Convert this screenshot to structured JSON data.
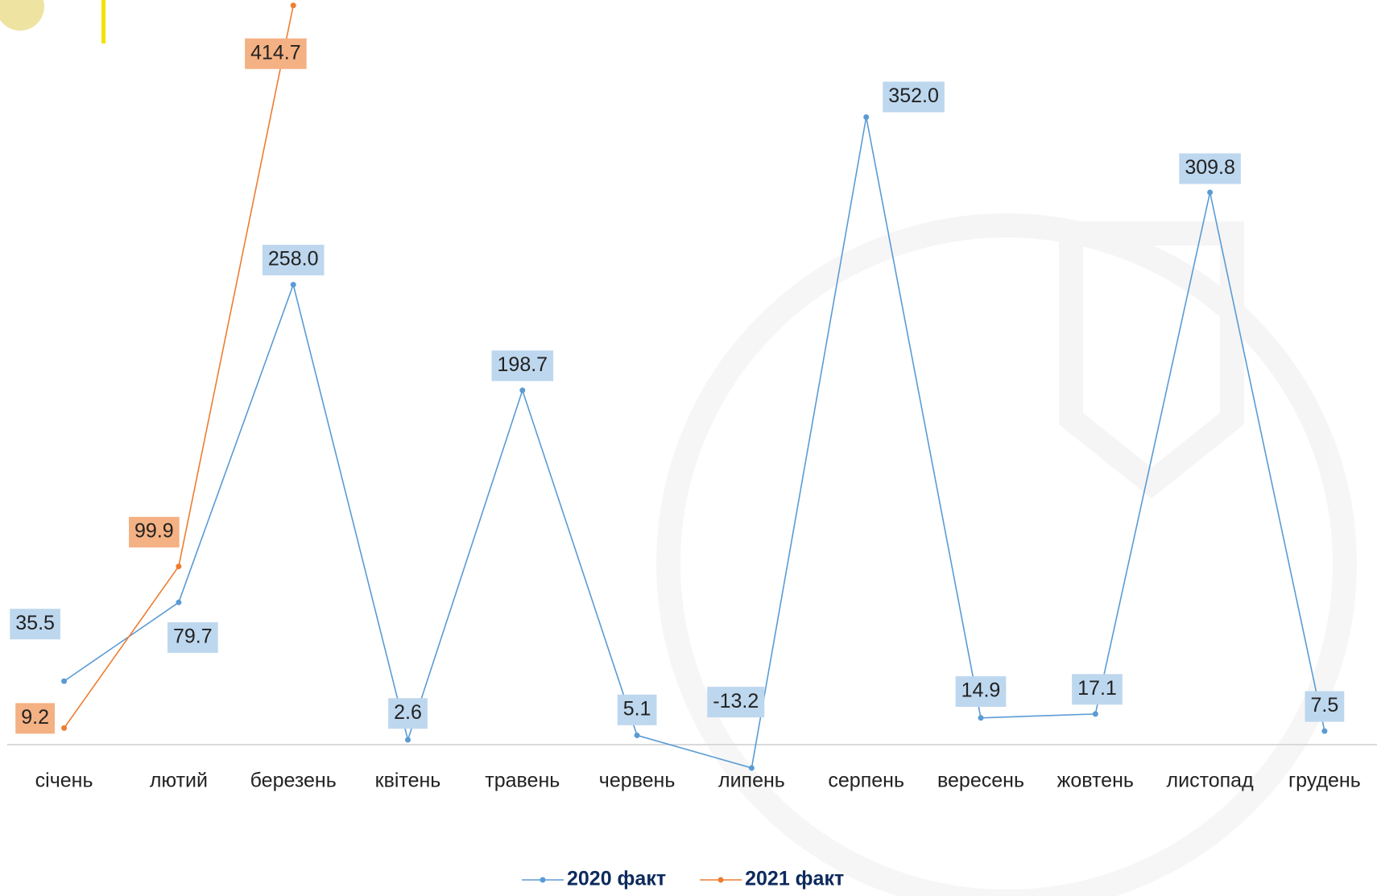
{
  "chart_data": {
    "type": "line",
    "categories": [
      "січень",
      "лютий",
      "березень",
      "квітень",
      "травень",
      "червень",
      "липень",
      "серпень",
      "вересень",
      "жовтень",
      "листопад",
      "грудень"
    ],
    "series": [
      {
        "name": "2020 факт",
        "color": "#5b9bd5",
        "label_color": "#bdd7ee",
        "values": [
          35.5,
          79.7,
          258.0,
          2.6,
          198.7,
          5.1,
          -13.2,
          352.0,
          14.9,
          17.1,
          309.8,
          7.5
        ],
        "value_labels": [
          "35.5",
          "79.7",
          "258.0",
          "2.6",
          "198.7",
          "5.1",
          "-13.2",
          "352.0",
          "14.9",
          "17.1",
          "309.8",
          "7.5"
        ]
      },
      {
        "name": "2021 факт",
        "color": "#ed7d31",
        "label_color": "#f4b183",
        "values": [
          9.2,
          99.9,
          414.7,
          null,
          null,
          null,
          null,
          null,
          null,
          null,
          null,
          null
        ],
        "value_labels": [
          "9.2",
          "99.9",
          "414.7",
          null,
          null,
          null,
          null,
          null,
          null,
          null,
          null,
          null
        ]
      }
    ],
    "ylim": [
      -20,
      420
    ]
  }
}
